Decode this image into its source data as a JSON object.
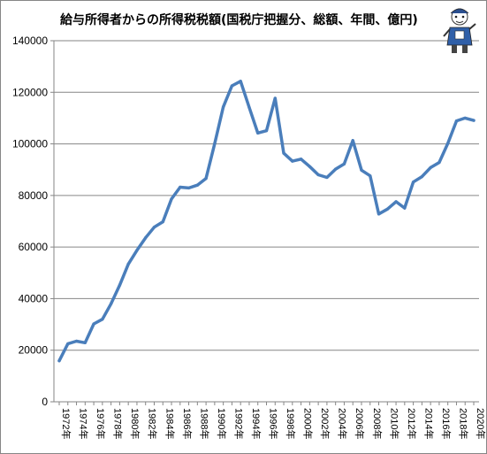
{
  "chart_data": {
    "type": "line",
    "title": "給与所得者からの所得税税額(国税庁把握分、総額、年間、億円)",
    "xlabel": "",
    "ylabel": "",
    "ylim": [
      0,
      140000
    ],
    "yticks": [
      0,
      20000,
      40000,
      60000,
      80000,
      100000,
      120000,
      140000
    ],
    "x_tick_labels": [
      "1972年",
      "1974年",
      "1976年",
      "1978年",
      "1980年",
      "1982年",
      "1984年",
      "1986年",
      "1988年",
      "1990年",
      "1992年",
      "1994年",
      "1996年",
      "1998年",
      "2000年",
      "2002年",
      "2004年",
      "2006年",
      "2008年",
      "2010年",
      "2012年",
      "2014年",
      "2016年",
      "2018年",
      "2020年"
    ],
    "grid": "horizontal",
    "legend": "none",
    "line_color": "#4a7ebb",
    "series": [
      {
        "x": [
          1972,
          1973,
          1974,
          1975,
          1976,
          1977,
          1978,
          1979,
          1980,
          1981,
          1982,
          1983,
          1984,
          1985,
          1986,
          1987,
          1988,
          1989,
          1990,
          1991,
          1992,
          1993,
          1994,
          1995,
          1996,
          1997,
          1998,
          1999,
          2000,
          2001,
          2002,
          2003,
          2004,
          2005,
          2006,
          2007,
          2008,
          2009,
          2010,
          2011,
          2012,
          2013,
          2014,
          2015,
          2016,
          2017,
          2018,
          2019,
          2020
        ],
        "values": [
          15900,
          22500,
          23500,
          22900,
          30200,
          32000,
          38000,
          45200,
          53400,
          58700,
          63600,
          67700,
          69800,
          78600,
          83200,
          82900,
          84000,
          86600,
          100100,
          114300,
          122500,
          124300,
          114100,
          104200,
          105100,
          117700,
          96400,
          93300,
          94100,
          91200,
          88000,
          87000,
          90200,
          92200,
          101300,
          89800,
          87600,
          72800,
          74700,
          77600,
          75100,
          85200,
          87300,
          90800,
          92800,
          100200,
          108900,
          110000,
          109100
        ]
      }
    ]
  },
  "decorations": {
    "mascot": "cartoon-mascot-figure"
  }
}
